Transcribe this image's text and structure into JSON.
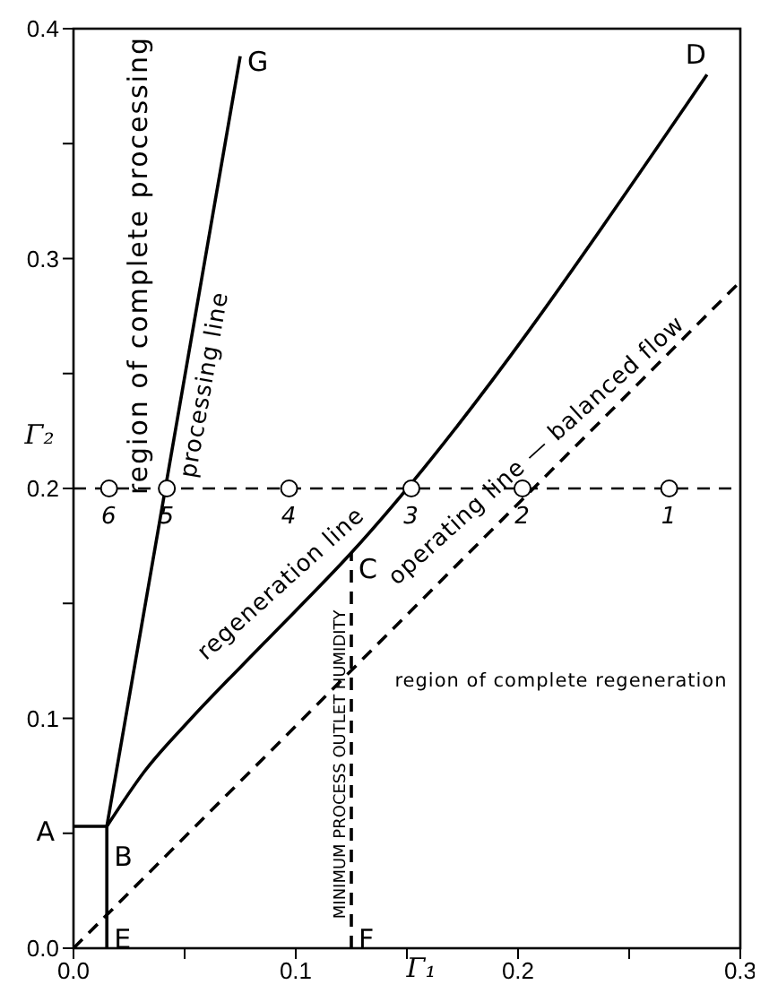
{
  "chart_data": {
    "type": "line",
    "xlabel": "Γ₁",
    "ylabel": "Γ₂",
    "xlim": [
      0,
      0.3
    ],
    "ylim": [
      0,
      0.4
    ],
    "xticks": [
      {
        "value": 0,
        "label": "0.0"
      },
      {
        "value": 0.05,
        "label": null
      },
      0.1,
      {
        "value": 0.15,
        "label": null
      },
      0.2,
      {
        "value": 0.25,
        "label": null
      },
      0.3
    ],
    "yticks": [
      {
        "value": 0,
        "label": "0.0"
      },
      {
        "value": 0.05,
        "label": null
      },
      0.1,
      {
        "value": 0.15,
        "label": null
      },
      0.2,
      {
        "value": 0.25,
        "label": null
      },
      0.3,
      {
        "value": 0.35,
        "label": null
      },
      0.4
    ],
    "grid": false,
    "legend": false,
    "series": [
      {
        "color": "#000000",
        "x": [
          0,
          0.015,
          0.015
        ],
        "values": [
          0.053,
          0.053,
          0
        ],
        "line_style": "solid",
        "marker": "none"
      },
      {
        "type": "line",
        "color": "#000000",
        "x": [
          0.015,
          0.075
        ],
        "values": [
          0.053,
          0.388
        ],
        "line_style": "solid",
        "marker": "none"
      },
      {
        "type": "line",
        "color": "#000000",
        "x": [
          0.015,
          0.032,
          0.053,
          0.086,
          0.125,
          0.285
        ],
        "values": [
          0.053,
          0.077,
          0.1,
          0.133,
          0.172,
          0.38
        ],
        "line_style": "solid",
        "marker": "none"
      },
      {
        "type": "line",
        "color": "#000000",
        "x": [
          0,
          0.3
        ],
        "values": [
          0,
          0.29
        ],
        "line_style": "dashed",
        "marker": "none"
      },
      {
        "type": "line",
        "color": "#000000",
        "x": [
          0.125,
          0.125
        ],
        "values": [
          0,
          0.172
        ],
        "line_style": "dashed",
        "marker": "none"
      },
      {
        "type": "scatter",
        "color": "#000000",
        "x": [
          0.016,
          0.042,
          0.097,
          0.152,
          0.202,
          0.268
        ],
        "values": [
          0.2,
          0.2,
          0.2,
          0.2,
          0.2,
          0.2
        ],
        "marker": "circle"
      }
    ],
    "ref_lines": [
      {
        "axis": "y",
        "value": 0.2,
        "color": "#000000",
        "line_style": "dashed"
      }
    ],
    "annotations": [
      {
        "text": "A",
        "x": 0,
        "y": 0.053
      },
      {
        "text": "B",
        "x": 0.015,
        "y": 0.053
      },
      {
        "text": "C",
        "x": 0.125,
        "y": 0.172
      },
      {
        "text": "D",
        "x": 0.285,
        "y": 0.38
      },
      {
        "text": "E",
        "x": 0.015,
        "y": 0
      },
      {
        "text": "F",
        "x": 0.125,
        "y": 0
      },
      {
        "text": "G",
        "x": 0.075,
        "y": 0.388
      },
      {
        "text": "6",
        "x": 0.016,
        "y": 0.2
      },
      {
        "text": "5",
        "x": 0.042,
        "y": 0.2
      },
      {
        "text": "4",
        "x": 0.097,
        "y": 0.2
      },
      {
        "text": "3",
        "x": 0.152,
        "y": 0.2
      },
      {
        "text": "2",
        "x": 0.202,
        "y": 0.2
      },
      {
        "text": "1",
        "x": 0.268,
        "y": 0.2
      },
      "region of complete processing",
      {
        "text": "processing line",
        "x": 0.048,
        "y": 0.245
      },
      {
        "text": "regeneration line",
        "x": 0.1,
        "y": 0.152
      },
      {
        "text": "operating line — balanced flow",
        "x": 0.215,
        "y": 0.21
      },
      "region of complete regeneration",
      {
        "text": "MINIMUM PROCESS OUTLET HUMIDITY",
        "x": 0.125,
        "y": 0.08
      }
    ]
  }
}
